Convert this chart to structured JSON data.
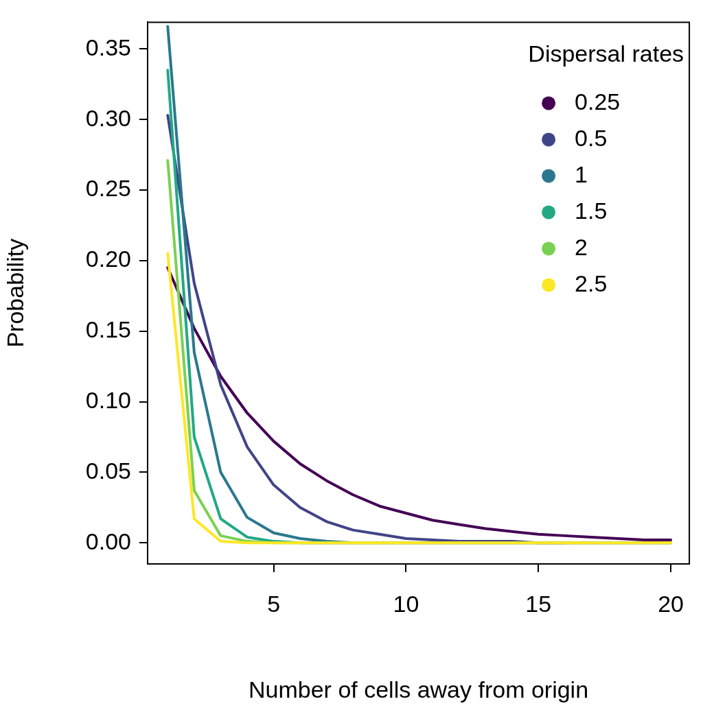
{
  "chart_data": {
    "type": "line",
    "xlabel": "Number of cells away from origin",
    "ylabel": "Probability",
    "legend_title": "Dispersal rates",
    "legend": "top right",
    "marker": "none",
    "line_style": "solid",
    "grid": false,
    "x": [
      1,
      2,
      3,
      4,
      5,
      6,
      7,
      8,
      9,
      10,
      11,
      12,
      13,
      14,
      15,
      16,
      17,
      18,
      19,
      20
    ],
    "xlim": [
      0.24,
      20.7
    ],
    "xticks": [
      5,
      10,
      15,
      20
    ],
    "ylim": [
      -0.015,
      0.369
    ],
    "yticks": [
      {
        "value": 0,
        "label": "0.00"
      },
      {
        "value": 0.05,
        "label": "0.05"
      },
      {
        "value": 0.1,
        "label": "0.10"
      },
      {
        "value": 0.15,
        "label": "0.15"
      },
      {
        "value": 0.2,
        "label": "0.20"
      },
      {
        "value": 0.25,
        "label": "0.25"
      },
      {
        "value": 0.3,
        "label": "0.30"
      },
      {
        "value": 0.35,
        "label": "0.35"
      }
    ],
    "series": [
      {
        "name": "0.25",
        "color": "#440154",
        "values": [
          0.195,
          0.152,
          0.118,
          0.092,
          0.072,
          0.056,
          0.044,
          0.034,
          0.026,
          0.021,
          0.016,
          0.013,
          0.01,
          0.008,
          0.006,
          0.005,
          0.004,
          0.003,
          0.002,
          0.002
        ]
      },
      {
        "name": "0.5",
        "color": "#414487",
        "values": [
          0.303,
          0.184,
          0.112,
          0.068,
          0.041,
          0.025,
          0.015,
          0.009,
          0.006,
          0.003,
          0.002,
          0.001,
          0.001,
          0.001,
          0,
          0,
          0,
          0,
          0,
          0
        ]
      },
      {
        "name": "1",
        "color": "#2a788e",
        "values": [
          0.366,
          0.135,
          0.05,
          0.018,
          0.007,
          0.003,
          0.001,
          0,
          0,
          0,
          0,
          0,
          0,
          0,
          0,
          0,
          null,
          null,
          null,
          null
        ]
      },
      {
        "name": "1.5",
        "color": "#22a884",
        "values": [
          0.335,
          0.075,
          0.017,
          0.004,
          0.001,
          0,
          0,
          0,
          null,
          null,
          null,
          null,
          null,
          null,
          null,
          null,
          null,
          null,
          null,
          null
        ]
      },
      {
        "name": "2",
        "color": "#7ad151",
        "values": [
          0.271,
          0.037,
          0.005,
          0.001,
          0,
          0,
          0,
          0,
          0,
          0,
          0,
          0,
          0,
          0,
          0,
          0,
          0,
          0,
          0,
          0
        ]
      },
      {
        "name": "2.5",
        "color": "#fde725",
        "values": [
          0.205,
          0.017,
          0.001,
          0,
          0,
          0,
          0,
          0,
          0,
          0,
          0,
          0,
          0,
          0,
          0,
          0,
          0,
          0,
          0,
          0
        ]
      }
    ]
  }
}
